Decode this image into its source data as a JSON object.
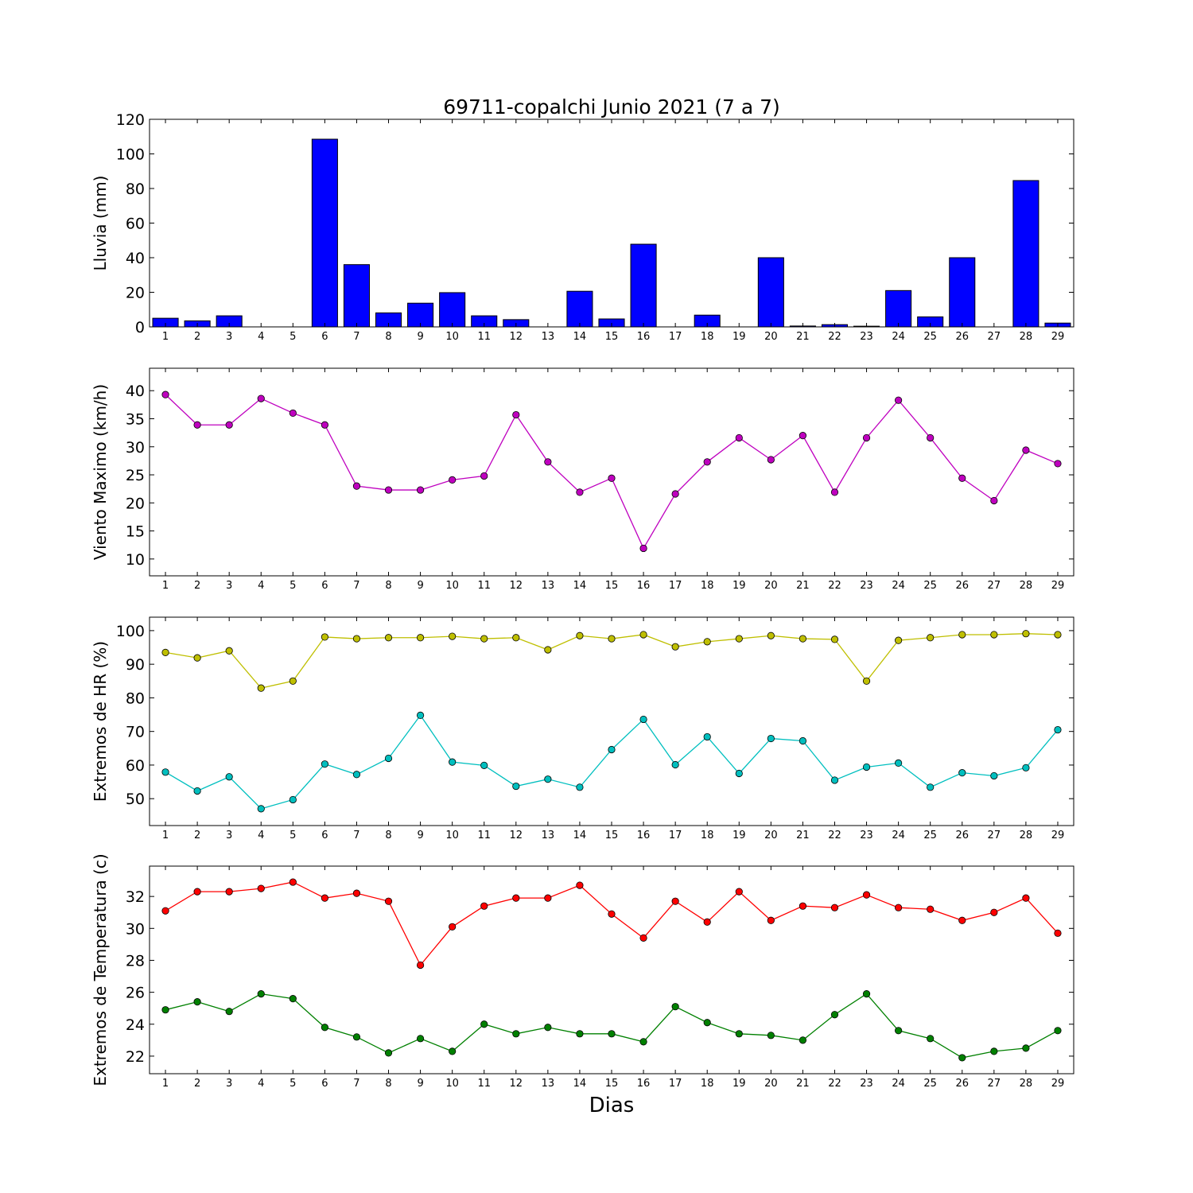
{
  "title": "69711-copalchi Junio 2021  (7 a 7)",
  "xlabel": "Dias",
  "chart_data": [
    {
      "type": "bar",
      "ylabel": "Lluvia (mm)",
      "ylim": [
        0,
        120
      ],
      "yticks": [
        0,
        20,
        40,
        60,
        80,
        100,
        120
      ],
      "categories": [
        "1",
        "2",
        "3",
        "4",
        "5",
        "6",
        "7",
        "8",
        "9",
        "10",
        "11",
        "12",
        "13",
        "14",
        "15",
        "16",
        "17",
        "18",
        "19",
        "20",
        "21",
        "22",
        "23",
        "24",
        "25",
        "26",
        "27",
        "28",
        "29"
      ],
      "series": [
        {
          "color": "#0000ff",
          "values": [
            5.0,
            3.5,
            6.4,
            0,
            0,
            108.5,
            36.0,
            8.1,
            13.7,
            19.8,
            6.4,
            4.2,
            0,
            20.6,
            4.6,
            47.8,
            0,
            6.8,
            0,
            40.0,
            0.5,
            1.3,
            0.4,
            21.0,
            5.8,
            40.0,
            0,
            84.6,
            2.2
          ]
        }
      ]
    },
    {
      "type": "line",
      "ylabel": "Viento Maximo (km/h)",
      "ylim": [
        7,
        44
      ],
      "yticks": [
        10,
        15,
        20,
        25,
        30,
        35,
        40
      ],
      "x": [
        1,
        2,
        3,
        4,
        5,
        6,
        7,
        8,
        9,
        10,
        11,
        12,
        13,
        14,
        15,
        16,
        17,
        18,
        19,
        20,
        21,
        22,
        23,
        24,
        25,
        26,
        27,
        28,
        29
      ],
      "series": [
        {
          "color": "#bf00bf",
          "values": [
            39.3,
            33.9,
            33.9,
            38.6,
            36.0,
            33.9,
            23.0,
            22.3,
            22.3,
            24.1,
            24.8,
            35.7,
            27.3,
            21.9,
            24.4,
            11.9,
            21.6,
            27.3,
            31.6,
            27.7,
            32.0,
            21.9,
            31.6,
            38.3,
            31.6,
            24.4,
            20.4,
            29.4,
            27.0
          ]
        }
      ]
    },
    {
      "type": "line",
      "ylabel": "Extremos de HR (%)",
      "ylim": [
        42,
        104
      ],
      "yticks": [
        50,
        60,
        70,
        80,
        90,
        100
      ],
      "x": [
        1,
        2,
        3,
        4,
        5,
        6,
        7,
        8,
        9,
        10,
        11,
        12,
        13,
        14,
        15,
        16,
        17,
        18,
        19,
        20,
        21,
        22,
        23,
        24,
        25,
        26,
        27,
        28,
        29
      ],
      "series": [
        {
          "color": "#bfbf00",
          "values": [
            93.5,
            91.9,
            94.0,
            82.9,
            85.0,
            98.1,
            97.6,
            97.9,
            97.9,
            98.3,
            97.6,
            97.9,
            94.3,
            98.5,
            97.6,
            98.8,
            95.2,
            96.7,
            97.6,
            98.5,
            97.6,
            97.4,
            85.0,
            97.1,
            97.9,
            98.8,
            98.8,
            99.1,
            98.8
          ]
        },
        {
          "color": "#00bfbf",
          "values": [
            57.9,
            52.3,
            56.5,
            47.0,
            49.7,
            60.3,
            57.2,
            62.0,
            74.8,
            60.9,
            59.9,
            53.7,
            55.8,
            53.4,
            64.6,
            73.6,
            60.1,
            68.4,
            57.5,
            67.9,
            67.2,
            55.5,
            59.4,
            60.6,
            53.4,
            57.7,
            56.8,
            59.2,
            70.5
          ]
        }
      ]
    },
    {
      "type": "line",
      "ylabel": "Extremos de Temperatura (c)",
      "ylim": [
        20.9,
        33.9
      ],
      "yticks": [
        22,
        24,
        26,
        28,
        30,
        32
      ],
      "x": [
        1,
        2,
        3,
        4,
        5,
        6,
        7,
        8,
        9,
        10,
        11,
        12,
        13,
        14,
        15,
        16,
        17,
        18,
        19,
        20,
        21,
        22,
        23,
        24,
        25,
        26,
        27,
        28,
        29
      ],
      "series": [
        {
          "color": "#ff0000",
          "values": [
            31.1,
            32.3,
            32.3,
            32.5,
            32.9,
            31.9,
            32.2,
            31.7,
            27.7,
            30.1,
            31.4,
            31.9,
            31.9,
            32.7,
            30.9,
            29.4,
            31.7,
            30.4,
            32.3,
            30.5,
            31.4,
            31.3,
            32.1,
            31.3,
            31.2,
            30.5,
            31.0,
            31.9,
            29.7
          ]
        },
        {
          "color": "#008000",
          "values": [
            24.9,
            25.4,
            24.8,
            25.9,
            25.6,
            23.8,
            23.2,
            22.2,
            23.1,
            22.3,
            24.0,
            23.4,
            23.8,
            23.4,
            23.4,
            22.9,
            25.1,
            24.1,
            23.4,
            23.3,
            23.0,
            24.6,
            25.9,
            23.6,
            23.1,
            21.9,
            22.3,
            22.5,
            23.6
          ]
        }
      ]
    }
  ]
}
